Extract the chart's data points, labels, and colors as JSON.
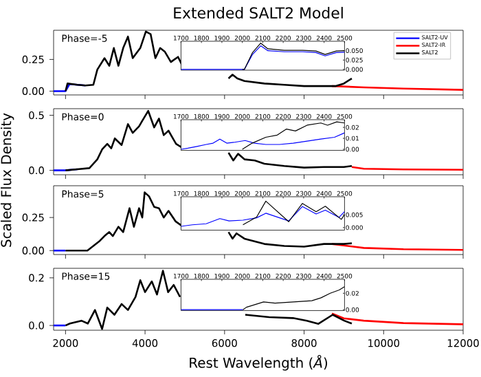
{
  "chart_data": [
    {
      "type": "line",
      "title": "Extended SALT2 Model",
      "xlim": [
        1700,
        12000
      ],
      "ylim": [
        -0.03,
        0.48
      ],
      "xticks": [
        2000,
        4000,
        6000,
        8000,
        10000,
        12000
      ],
      "yticks": [
        {
          "value": 0,
          "label": "0.00"
        },
        {
          "value": 0.25,
          "label": "0.25"
        }
      ],
      "tick_labels": "y",
      "legend": "top right",
      "annotations": [
        "Phase=-5"
      ],
      "series": [
        {
          "name": "SALT2-UV",
          "color": "#0000ff",
          "x": [
            1700,
            2000,
            2100,
            2300,
            2500
          ],
          "values": [
            0.0,
            0.0,
            0.055,
            0.05,
            0.045
          ]
        },
        {
          "name": "SALT2-IR",
          "color": "#ff0000",
          "x": [
            8700,
            9500,
            10500,
            12000
          ],
          "values": [
            0.04,
            0.03,
            0.02,
            0.01
          ]
        },
        {
          "name": "SALT2",
          "color": "#000000",
          "x": [
            2000,
            2050,
            2300,
            2500,
            2700,
            2800,
            2980,
            3100,
            3215,
            3330,
            3450,
            3570,
            3690,
            3880,
            4020,
            4140,
            4260,
            4380,
            4500,
            4650,
            4830,
            4970,
            5500,
            6100,
            6200,
            6320,
            6500,
            7000,
            7500,
            8000,
            8500,
            8800,
            9000,
            9200
          ],
          "values": [
            0.0,
            0.06,
            0.05,
            0.045,
            0.05,
            0.17,
            0.26,
            0.2,
            0.34,
            0.2,
            0.34,
            0.43,
            0.26,
            0.34,
            0.47,
            0.45,
            0.26,
            0.34,
            0.31,
            0.23,
            0.27,
            0.18,
            null,
            0.1,
            0.13,
            0.1,
            0.08,
            0.06,
            0.05,
            0.04,
            0.04,
            0.04,
            0.06,
            0.1
          ]
        }
      ]
    },
    {
      "type": "line",
      "xlim": [
        1700,
        2500
      ],
      "ylim": [
        -0.002,
        0.075
      ],
      "xticks": [
        1700,
        1800,
        1900,
        2000,
        2100,
        2200,
        2300,
        2400,
        2500
      ],
      "yticks": [
        {
          "value": 0,
          "label": "0.000"
        },
        {
          "value": 0.025,
          "label": "0.025"
        },
        {
          "value": 0.05,
          "label": "0.050"
        }
      ],
      "series": [
        {
          "color": "#0000ff",
          "x": [
            1700,
            2010,
            2050,
            2090,
            2125,
            2205,
            2295,
            2360,
            2405,
            2460,
            2500
          ],
          "values": [
            0.0,
            0.0,
            0.04,
            0.063,
            0.05,
            0.047,
            0.047,
            0.045,
            0.036,
            0.045,
            0.046
          ]
        },
        {
          "color": "#000000",
          "x": [
            2000,
            2010,
            2050,
            2090,
            2125,
            2205,
            2295,
            2360,
            2405,
            2460,
            2500
          ],
          "values": [
            0.0,
            0.0,
            0.045,
            0.07,
            0.055,
            0.051,
            0.051,
            0.049,
            0.04,
            0.049,
            0.05
          ]
        }
      ]
    },
    {
      "type": "line",
      "ylabel": "Scaled Flux Density",
      "xlim": [
        1700,
        12000
      ],
      "ylim": [
        -0.04,
        0.56
      ],
      "xticks": [
        2000,
        4000,
        6000,
        8000,
        10000,
        12000
      ],
      "yticks": [
        {
          "value": 0,
          "label": "0.0"
        },
        {
          "value": 0.5,
          "label": "0.5"
        }
      ],
      "tick_labels": "y",
      "annotations": [
        "Phase=0"
      ],
      "series": [
        {
          "color": "#0000ff",
          "x": [
            1700,
            2000,
            2300
          ],
          "values": [
            0.0,
            0.0,
            0.01
          ]
        },
        {
          "color": "#ff0000",
          "x": [
            9200,
            9500,
            10500,
            12000
          ],
          "values": [
            0.03,
            0.015,
            0.008,
            0.005
          ]
        },
        {
          "color": "#000000",
          "x": [
            2000,
            2300,
            2600,
            2800,
            2920,
            3050,
            3150,
            3240,
            3410,
            3570,
            3690,
            3850,
            3930,
            4080,
            4230,
            4350,
            4470,
            4590,
            4780,
            4960,
            5500,
            6100,
            6220,
            6340,
            6500,
            6760,
            7000,
            7500,
            8000,
            8500,
            9000,
            9200
          ],
          "values": [
            0.0,
            0.01,
            0.02,
            0.1,
            0.19,
            0.24,
            0.2,
            0.29,
            0.23,
            0.42,
            0.34,
            0.4,
            0.45,
            0.54,
            0.39,
            0.47,
            0.32,
            0.36,
            0.24,
            0.2,
            null,
            0.16,
            0.09,
            0.15,
            0.1,
            0.09,
            0.06,
            0.04,
            0.025,
            0.03,
            0.03,
            0.04
          ]
        }
      ]
    },
    {
      "type": "line",
      "xlim": [
        1700,
        2500
      ],
      "ylim": [
        -0.001,
        0.027
      ],
      "xticks": [
        1700,
        1800,
        1900,
        2000,
        2100,
        2200,
        2300,
        2400,
        2500
      ],
      "yticks": [
        {
          "value": 0,
          "label": "0.00"
        },
        {
          "value": 0.01,
          "label": "0.01"
        },
        {
          "value": 0.02,
          "label": "0.02"
        }
      ],
      "series": [
        {
          "color": "#0000ff",
          "x": [
            1700,
            1734,
            1778,
            1823,
            1857,
            1890,
            1924,
            1958,
            2014,
            2059,
            2115,
            2182,
            2249,
            2317,
            2384,
            2451,
            2500
          ],
          "values": [
            0.0,
            0.001,
            0.0026,
            0.0044,
            0.0056,
            0.0093,
            0.0056,
            0.0063,
            0.008,
            0.0056,
            0.0044,
            0.0044,
            0.0056,
            0.0074,
            0.0093,
            0.011,
            0.015
          ]
        },
        {
          "color": "#000000",
          "x": [
            2000,
            2048,
            2115,
            2171,
            2216,
            2260,
            2317,
            2384,
            2417,
            2462,
            2500
          ],
          "values": [
            0.0,
            0.0056,
            0.011,
            0.013,
            0.0185,
            0.0167,
            0.022,
            0.024,
            0.022,
            0.025,
            0.024
          ]
        }
      ]
    },
    {
      "type": "line",
      "xlim": [
        1700,
        12000
      ],
      "ylim": [
        -0.03,
        0.49
      ],
      "xticks": [
        2000,
        4000,
        6000,
        8000,
        10000,
        12000
      ],
      "yticks": [
        {
          "value": 0,
          "label": "0.00"
        },
        {
          "value": 0.25,
          "label": "0.25"
        }
      ],
      "tick_labels": "y",
      "annotations": [
        "Phase=5"
      ],
      "series": [
        {
          "color": "#0000ff",
          "x": [
            1700,
            2000
          ],
          "values": [
            0.0,
            0.0
          ]
        },
        {
          "color": "#ff0000",
          "x": [
            8700,
            9500,
            10500,
            12000
          ],
          "values": [
            0.05,
            0.02,
            0.01,
            0.005
          ]
        },
        {
          "color": "#000000",
          "x": [
            2000,
            2550,
            2860,
            2980,
            3100,
            3190,
            3330,
            3450,
            3610,
            3720,
            3850,
            3930,
            3990,
            4100,
            4230,
            4350,
            4470,
            4590,
            4770,
            4960,
            5500,
            6100,
            6200,
            6300,
            6500,
            7000,
            7500,
            8000,
            8500,
            9000,
            9200
          ],
          "values": [
            0.0,
            0.0,
            0.073,
            0.11,
            0.14,
            0.11,
            0.18,
            0.14,
            0.32,
            0.18,
            0.32,
            0.25,
            0.44,
            0.41,
            0.33,
            0.32,
            0.25,
            0.3,
            0.22,
            0.18,
            null,
            0.14,
            0.09,
            0.13,
            0.09,
            0.05,
            0.035,
            0.03,
            0.05,
            0.05,
            0.055
          ]
        }
      ]
    },
    {
      "type": "line",
      "xlim": [
        1700,
        2500
      ],
      "ylim": [
        -0.001,
        0.012
      ],
      "xticks": [
        1700,
        1800,
        1900,
        2000,
        2100,
        2200,
        2300,
        2400,
        2500
      ],
      "yticks": [
        {
          "value": 0,
          "label": "0.000"
        },
        {
          "value": 0.005,
          "label": "0.005"
        }
      ],
      "series": [
        {
          "color": "#0000ff",
          "x": [
            1700,
            1756,
            1823,
            1890,
            1935,
            2003,
            2070,
            2115,
            2227,
            2294,
            2361,
            2406,
            2473,
            2500
          ],
          "values": [
            0.0005,
            0.0011,
            0.0015,
            0.0035,
            0.0026,
            0.0029,
            0.0038,
            0.0056,
            0.0026,
            0.0082,
            0.0053,
            0.0068,
            0.004,
            0.0062
          ]
        },
        {
          "color": "#000000",
          "x": [
            2003,
            2070,
            2115,
            2227,
            2294,
            2361,
            2406,
            2484,
            2500
          ],
          "values": [
            0.0011,
            0.0041,
            0.0103,
            0.0023,
            0.0094,
            0.0062,
            0.0083,
            0.0032,
            0.005
          ]
        }
      ]
    },
    {
      "type": "line",
      "xlabel": "Rest Wavelength (*Å*)",
      "xlim": [
        1700,
        12000
      ],
      "ylim": [
        -0.02,
        0.24
      ],
      "xticks": [
        2000,
        4000,
        6000,
        8000,
        10000,
        12000
      ],
      "yticks": [
        {
          "value": 0,
          "label": "0.0"
        },
        {
          "value": 0.2,
          "label": "0.2"
        }
      ],
      "annotations": [
        "Phase=15"
      ],
      "series": [
        {
          "color": "#0000ff",
          "x": [
            1700,
            2000
          ],
          "values": [
            0.0,
            0.0
          ]
        },
        {
          "color": "#ff0000",
          "x": [
            8700,
            9000,
            9500,
            10500,
            12000
          ],
          "values": [
            0.05,
            0.03,
            0.02,
            0.01,
            0.005
          ]
        },
        {
          "color": "#000000",
          "x": [
            2000,
            2110,
            2400,
            2560,
            2740,
            2920,
            3050,
            3230,
            3410,
            3570,
            3760,
            3880,
            4000,
            4170,
            4300,
            4450,
            4580,
            4720,
            4880,
            5500,
            6520,
            7120,
            7720,
            8070,
            8360,
            8720,
            9010,
            9200
          ],
          "values": [
            0.0,
            0.008,
            0.02,
            0.008,
            0.065,
            -0.015,
            0.075,
            0.045,
            0.09,
            0.065,
            0.12,
            0.19,
            0.14,
            0.185,
            0.13,
            0.23,
            0.14,
            0.17,
            0.12,
            null,
            0.045,
            0.035,
            0.031,
            0.02,
            0.007,
            0.045,
            0.02,
            0.008
          ]
        }
      ]
    },
    {
      "type": "line",
      "xlim": [
        1700,
        2500
      ],
      "ylim": [
        -0.001,
        0.037
      ],
      "xticks": [
        1700,
        1800,
        1900,
        2000,
        2100,
        2200,
        2300,
        2400,
        2500
      ],
      "yticks": [
        {
          "value": 0,
          "label": "0.00"
        },
        {
          "value": 0.02,
          "label": "0.02"
        }
      ],
      "series": [
        {
          "color": "#0000ff",
          "x": [
            1700,
            2003
          ],
          "values": [
            0.0,
            0.0
          ]
        },
        {
          "color": "#000000",
          "x": [
            2003,
            2020,
            2104,
            2160,
            2250,
            2340,
            2385,
            2430,
            2474,
            2500
          ],
          "values": [
            0.0,
            0.003,
            0.0095,
            0.008,
            0.0095,
            0.011,
            0.0145,
            0.02,
            0.024,
            0.028
          ]
        }
      ]
    }
  ]
}
